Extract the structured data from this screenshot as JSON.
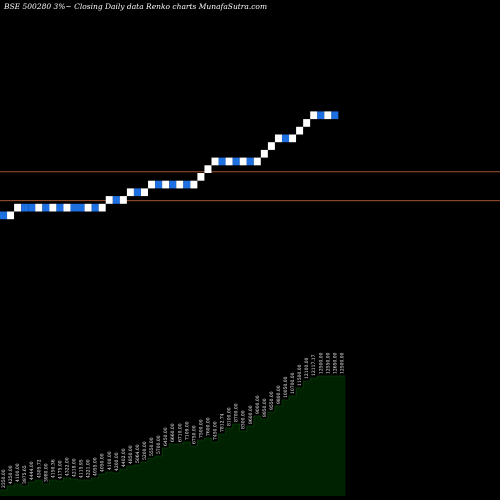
{
  "chart_data": {
    "type": "renko",
    "title": "BSE 500280  3%~  Closing Daily data  Renko  charts MunafaSutra.com",
    "brick_size": 0.56,
    "colors": {
      "up": "#ffffff",
      "down": "#1e6fe0",
      "reference_lines": "#a0522d",
      "volume_fill": "#002200",
      "background": "#000000"
    },
    "reference_lines": [
      {
        "value": 14.93
      },
      {
        "value": 12.83
      }
    ],
    "ylim": [
      0,
      28
    ],
    "bricks": [
      {
        "close": 11.48,
        "dir": "down"
      },
      {
        "close": 12.04,
        "dir": "up"
      },
      {
        "close": 12.6,
        "dir": "up"
      },
      {
        "close": 12.04,
        "dir": "down"
      },
      {
        "close": 12.04,
        "dir": "down"
      },
      {
        "close": 12.6,
        "dir": "up"
      },
      {
        "close": 12.04,
        "dir": "down"
      },
      {
        "close": 12.6,
        "dir": "up"
      },
      {
        "close": 12.04,
        "dir": "down"
      },
      {
        "close": 12.6,
        "dir": "up"
      },
      {
        "close": 12.04,
        "dir": "down"
      },
      {
        "close": 12.04,
        "dir": "down"
      },
      {
        "close": 12.6,
        "dir": "up"
      },
      {
        "close": 12.04,
        "dir": "down"
      },
      {
        "close": 12.6,
        "dir": "up"
      },
      {
        "close": 13.16,
        "dir": "up"
      },
      {
        "close": 12.6,
        "dir": "down"
      },
      {
        "close": 13.16,
        "dir": "up"
      },
      {
        "close": 13.72,
        "dir": "up"
      },
      {
        "close": 13.16,
        "dir": "down"
      },
      {
        "close": 13.72,
        "dir": "up"
      },
      {
        "close": 14.28,
        "dir": "up"
      },
      {
        "close": 13.72,
        "dir": "down"
      },
      {
        "close": 14.28,
        "dir": "up"
      },
      {
        "close": 13.72,
        "dir": "down"
      },
      {
        "close": 14.28,
        "dir": "up"
      },
      {
        "close": 13.72,
        "dir": "down"
      },
      {
        "close": 14.28,
        "dir": "up"
      },
      {
        "close": 14.84,
        "dir": "up"
      },
      {
        "close": 15.4,
        "dir": "up"
      },
      {
        "close": 15.96,
        "dir": "up"
      },
      {
        "close": 15.4,
        "dir": "down"
      },
      {
        "close": 15.96,
        "dir": "up"
      },
      {
        "close": 15.4,
        "dir": "down"
      },
      {
        "close": 15.96,
        "dir": "up"
      },
      {
        "close": 15.4,
        "dir": "down"
      },
      {
        "close": 15.96,
        "dir": "up"
      },
      {
        "close": 16.52,
        "dir": "up"
      },
      {
        "close": 17.08,
        "dir": "up"
      },
      {
        "close": 17.64,
        "dir": "up"
      },
      {
        "close": 17.08,
        "dir": "down"
      },
      {
        "close": 17.64,
        "dir": "up"
      },
      {
        "close": 18.2,
        "dir": "up"
      },
      {
        "close": 18.76,
        "dir": "up"
      },
      {
        "close": 19.32,
        "dir": "up"
      },
      {
        "close": 18.76,
        "dir": "down"
      },
      {
        "close": 19.32,
        "dir": "up"
      },
      {
        "close": 18.76,
        "dir": "down"
      }
    ],
    "volume_labels": [
      "2350.00",
      "4250.00",
      "4100.00",
      "3975.65",
      "4444.00",
      "4505.72",
      "3980.00",
      "4150.36",
      "4175.00",
      "4322.00",
      "4218.00",
      "4115.95",
      "4221.00",
      "4055.00",
      "4050.00",
      "4100.00",
      "4200.00",
      "4402.00",
      "4850.00",
      "5064.00",
      "5200.00",
      "5550.00",
      "5700.00",
      "6450.00",
      "6660.00",
      "6710.00",
      "7109.00",
      "6750.00",
      "7500.00",
      "7600.00",
      "7450.00",
      "7812.74",
      "8100.00",
      "8700.00",
      "8300.00",
      "8600.00",
      "9000.00",
      "8950.00",
      "9550.00",
      "9800.00",
      "10050.00",
      "10700.00",
      "11500.00",
      "12100.00",
      "12117.17",
      "12500.00",
      "12550.00",
      "12650.00",
      "12500.00"
    ],
    "volume_values": [
      6,
      10,
      12,
      10,
      14,
      16,
      12,
      16,
      15,
      18,
      17,
      16,
      16,
      18,
      22,
      24,
      23,
      27,
      30,
      31,
      34,
      38,
      40,
      48,
      52,
      52,
      54,
      50,
      56,
      58,
      54,
      62,
      68,
      72,
      65,
      70,
      80,
      77,
      84,
      90,
      96,
      100,
      108,
      115,
      118,
      120,
      120,
      120,
      120
    ]
  }
}
